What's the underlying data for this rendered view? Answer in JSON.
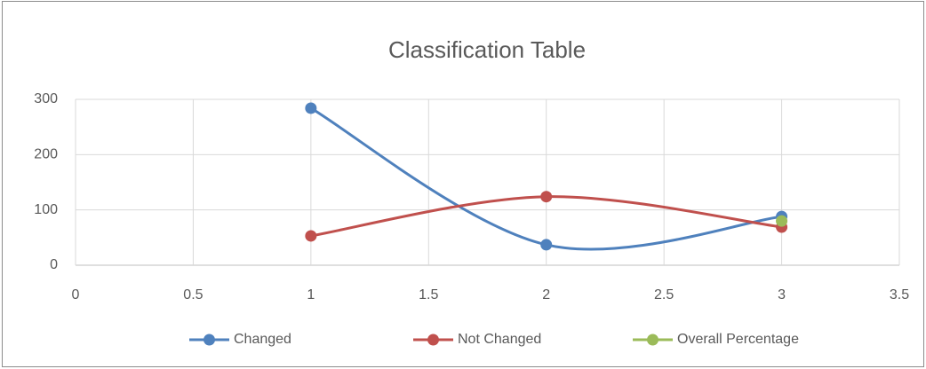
{
  "chart_data": {
    "type": "scatter-smooth",
    "title": "Classification Table",
    "series": [
      {
        "name": "Changed",
        "color": "#4f81bd",
        "x": [
          1,
          2,
          3
        ],
        "values": [
          284,
          37,
          88
        ]
      },
      {
        "name": "Not Changed",
        "color": "#c0504d",
        "x": [
          1,
          2,
          3
        ],
        "values": [
          53,
          124,
          69
        ]
      },
      {
        "name": "Overall Percentage",
        "color": "#9bbb59",
        "x": [
          3
        ],
        "values": [
          80
        ]
      }
    ],
    "xlim": [
      0,
      3.5
    ],
    "xticks": [
      0,
      0.5,
      1,
      1.5,
      2,
      2.5,
      3,
      3.5
    ],
    "ylim": [
      0,
      300
    ],
    "yticks": [
      0,
      100,
      200,
      300
    ],
    "grid": true,
    "legend": "bottom"
  }
}
